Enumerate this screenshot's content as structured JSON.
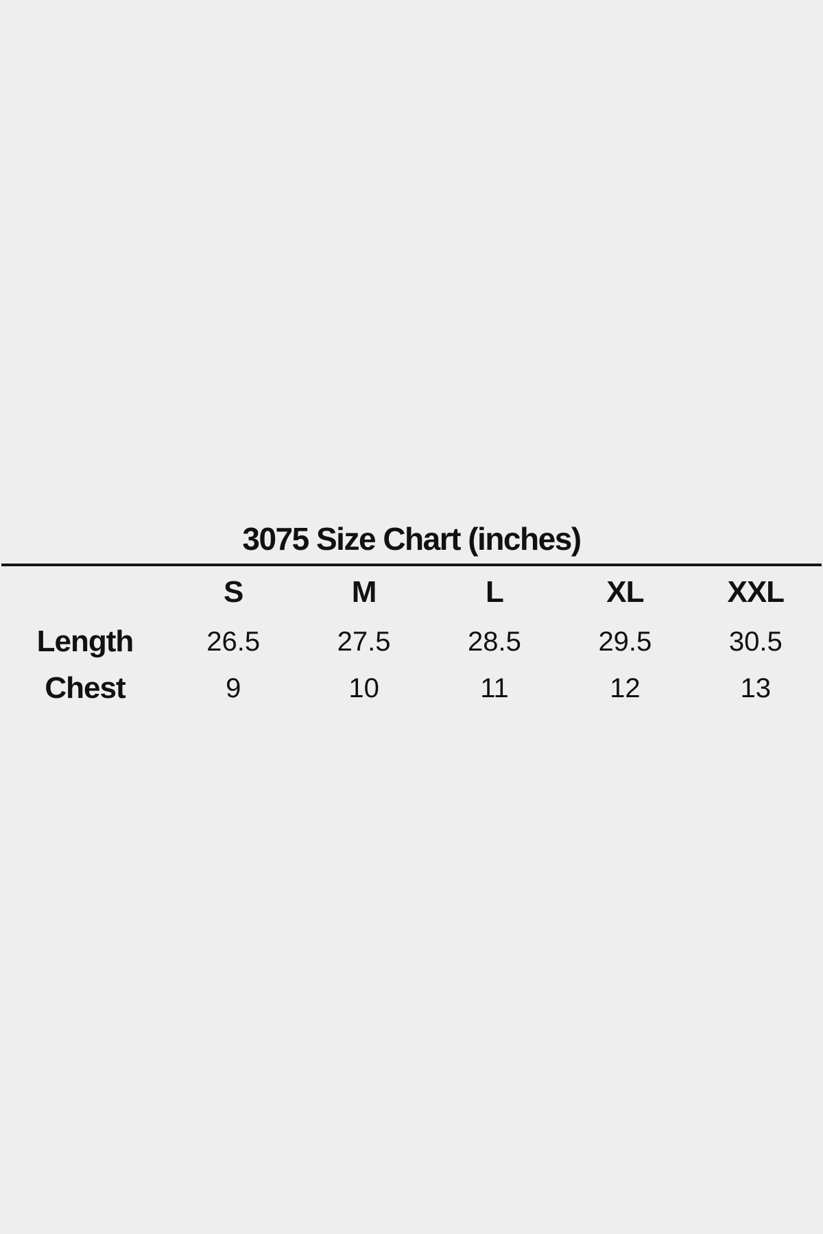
{
  "page": {
    "background_color": "#eeeeee",
    "text_color": "#111111",
    "divider_color": "#161616"
  },
  "chart_data": {
    "type": "table",
    "title": "3075 Size Chart (inches)",
    "columns": [
      "",
      "S",
      "M",
      "L",
      "XL",
      "XXL"
    ],
    "rows": [
      {
        "label": "Length",
        "values": [
          "26.5",
          "27.5",
          "28.5",
          "29.5",
          "30.5"
        ]
      },
      {
        "label": "Chest",
        "values": [
          "9",
          "10",
          "11",
          "12",
          "13"
        ]
      }
    ],
    "layout_hints": {
      "title_position": "centered above table",
      "divider_under_title": true,
      "grid": "none (only single horizontal rule under title)"
    }
  }
}
